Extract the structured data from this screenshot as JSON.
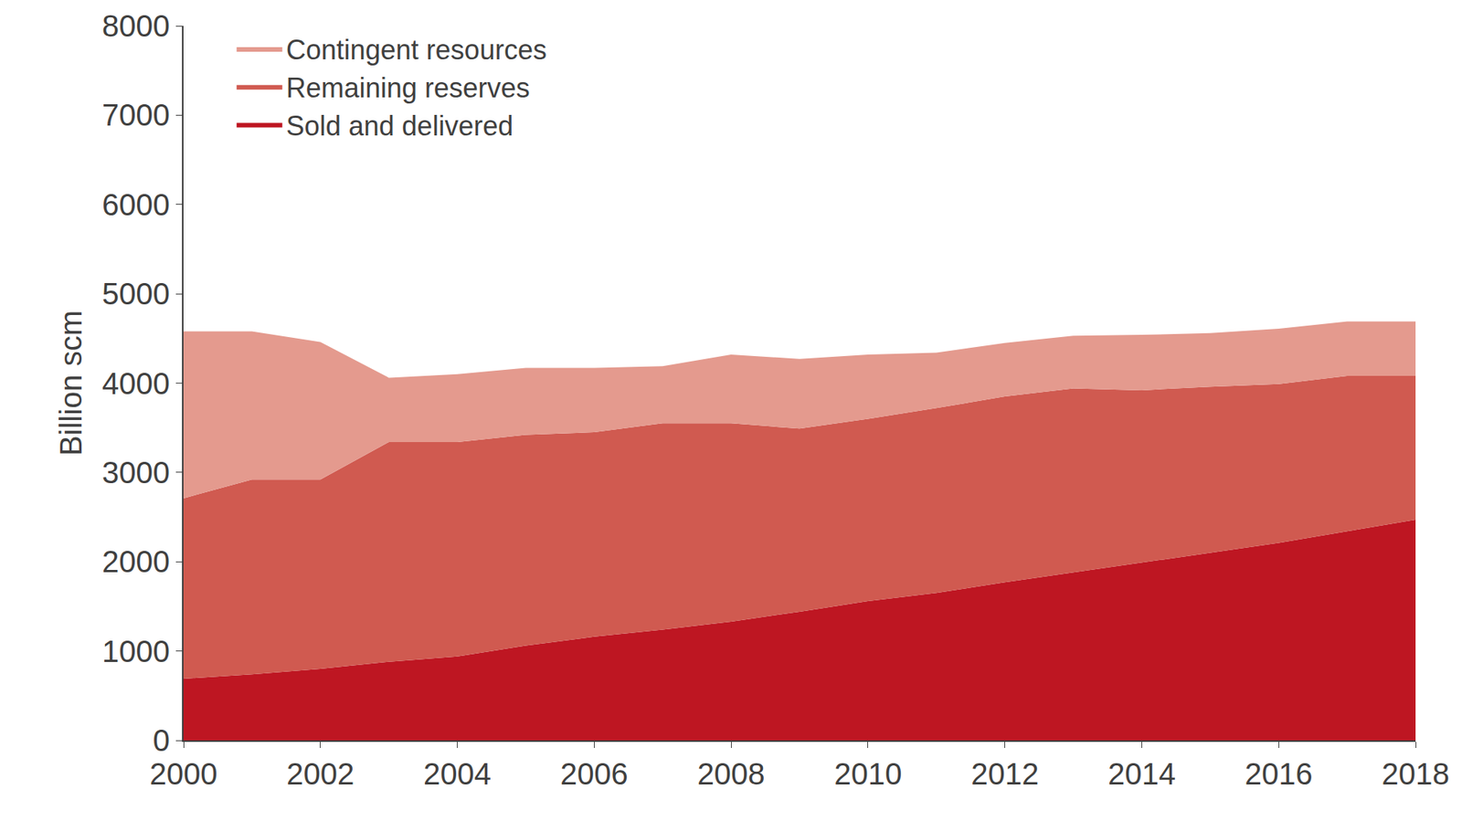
{
  "chart_data": {
    "type": "area",
    "stacked": true,
    "legend": "top left",
    "grid": false,
    "y_label": "Billion scm",
    "x": [
      2000,
      2001,
      2002,
      2003,
      2004,
      2005,
      2006,
      2007,
      2008,
      2009,
      2010,
      2011,
      2012,
      2013,
      2014,
      2015,
      2016,
      2017,
      2018
    ],
    "xlim": [
      2000,
      2018
    ],
    "xticks": [
      2000,
      2002,
      2004,
      2006,
      2008,
      2010,
      2012,
      2014,
      2016,
      2018
    ],
    "ylim": [
      0,
      8000
    ],
    "yticks": [
      0,
      1000,
      2000,
      3000,
      4000,
      5000,
      6000,
      7000,
      8000
    ],
    "series": [
      {
        "name": "Sold and delivered",
        "color": "#be1622",
        "values": [
          690,
          740,
          800,
          880,
          940,
          1060,
          1160,
          1240,
          1330,
          1440,
          1560,
          1650,
          1770,
          1880,
          1990,
          2100,
          2210,
          2340,
          2470
        ]
      },
      {
        "name": "Remaining reserves",
        "color": "#d05a50",
        "values": [
          2020,
          2180,
          2120,
          2460,
          2400,
          2360,
          2290,
          2310,
          2220,
          2050,
          2040,
          2070,
          2080,
          2060,
          1930,
          1860,
          1780,
          1740,
          1610
        ]
      },
      {
        "name": "Contingent resources",
        "color": "#e49a8e",
        "values": [
          1870,
          1660,
          1540,
          720,
          760,
          750,
          720,
          640,
          770,
          780,
          720,
          620,
          600,
          590,
          620,
          600,
          620,
          610,
          610
        ]
      }
    ]
  }
}
